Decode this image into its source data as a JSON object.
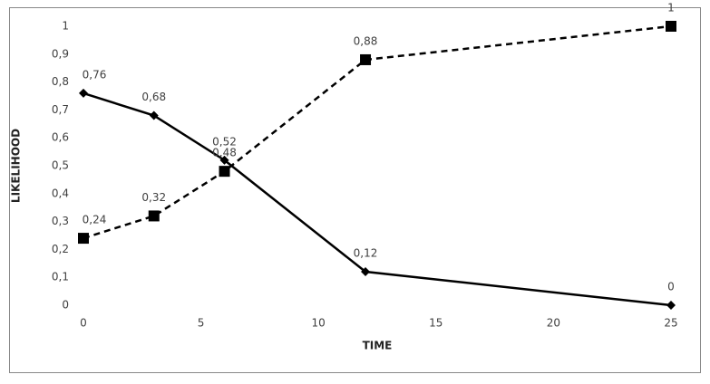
{
  "chart_data": {
    "type": "line",
    "x_label": "TIME",
    "y_label": "LIKELIHOOD",
    "xlim": [
      0,
      25
    ],
    "xticks": [
      0,
      5,
      10,
      15,
      20,
      25
    ],
    "ylim": [
      0,
      1
    ],
    "yticks": [
      0,
      {
        "value": 0.1,
        "label": "0,1"
      },
      {
        "value": 0.2,
        "label": "0,2"
      },
      {
        "value": 0.3,
        "label": "0,3"
      },
      {
        "value": 0.4,
        "label": "0,4"
      },
      {
        "value": 0.5,
        "label": "0,5"
      },
      {
        "value": 0.6,
        "label": "0,6"
      },
      {
        "value": 0.7,
        "label": "0,7"
      },
      {
        "value": 0.8,
        "label": "0,8"
      },
      {
        "value": 0.9,
        "label": "0,9"
      },
      1
    ],
    "grid": false,
    "x": [
      0,
      3,
      6,
      12,
      25
    ],
    "series": [
      {
        "color": "#000000",
        "line_style": "solid",
        "marker": "diamond",
        "values": [
          0.76,
          0.68,
          0.52,
          0.12,
          0
        ],
        "value_labels": [
          "0,76",
          "0,68",
          "0,52",
          "0,12",
          "0"
        ]
      },
      {
        "color": "#000000",
        "line_style": "dashed",
        "marker": "square",
        "values": [
          0.24,
          0.32,
          0.48,
          0.88,
          1
        ],
        "value_labels": [
          "0,24",
          "0,32",
          "0,48",
          "0,88",
          "1"
        ]
      }
    ]
  }
}
